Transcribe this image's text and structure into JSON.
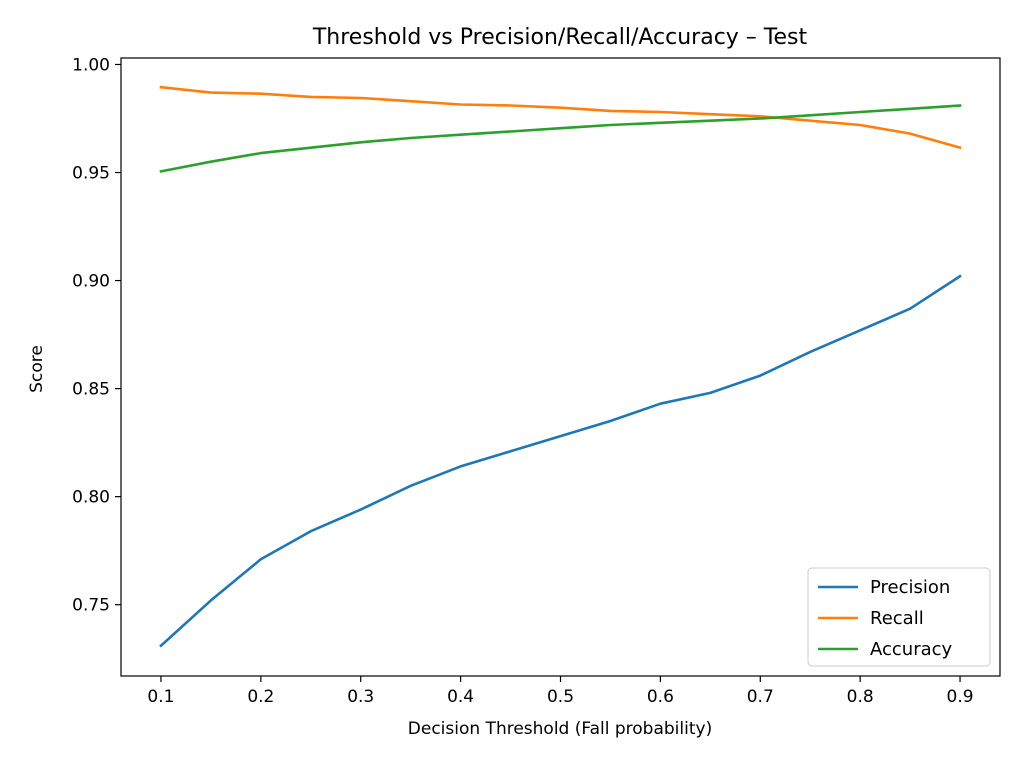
{
  "chart_data": {
    "type": "line",
    "title": "Threshold vs Precision/Recall/Accuracy – Test",
    "xlabel": "Decision Threshold (Fall probability)",
    "ylabel": "Score",
    "x": [
      0.1,
      0.15,
      0.2,
      0.25,
      0.3,
      0.35,
      0.4,
      0.45,
      0.5,
      0.55,
      0.6,
      0.65,
      0.7,
      0.75,
      0.8,
      0.85,
      0.9
    ],
    "x_ticks": [
      "0.1",
      "0.2",
      "0.3",
      "0.4",
      "0.5",
      "0.6",
      "0.7",
      "0.8",
      "0.9"
    ],
    "y_ticks": [
      "0.75",
      "0.80",
      "0.85",
      "0.90",
      "0.95",
      "1.00"
    ],
    "xlim": [
      0.06,
      0.94
    ],
    "ylim": [
      0.717,
      1.003
    ],
    "grid": false,
    "legend_position": "lower right",
    "series": [
      {
        "name": "Precision",
        "color": "#1f77b4",
        "values": [
          0.731,
          0.752,
          0.771,
          0.784,
          0.794,
          0.805,
          0.814,
          0.821,
          0.828,
          0.835,
          0.843,
          0.848,
          0.856,
          0.867,
          0.877,
          0.887,
          0.902
        ]
      },
      {
        "name": "Recall",
        "color": "#ff7f0e",
        "values": [
          0.9895,
          0.987,
          0.9865,
          0.985,
          0.9845,
          0.983,
          0.9815,
          0.981,
          0.98,
          0.9785,
          0.978,
          0.977,
          0.976,
          0.974,
          0.972,
          0.968,
          0.9615
        ]
      },
      {
        "name": "Accuracy",
        "color": "#2ca02c",
        "values": [
          0.9505,
          0.955,
          0.959,
          0.9615,
          0.964,
          0.966,
          0.9675,
          0.969,
          0.9705,
          0.972,
          0.973,
          0.974,
          0.975,
          0.9765,
          0.978,
          0.9795,
          0.981
        ]
      }
    ]
  }
}
